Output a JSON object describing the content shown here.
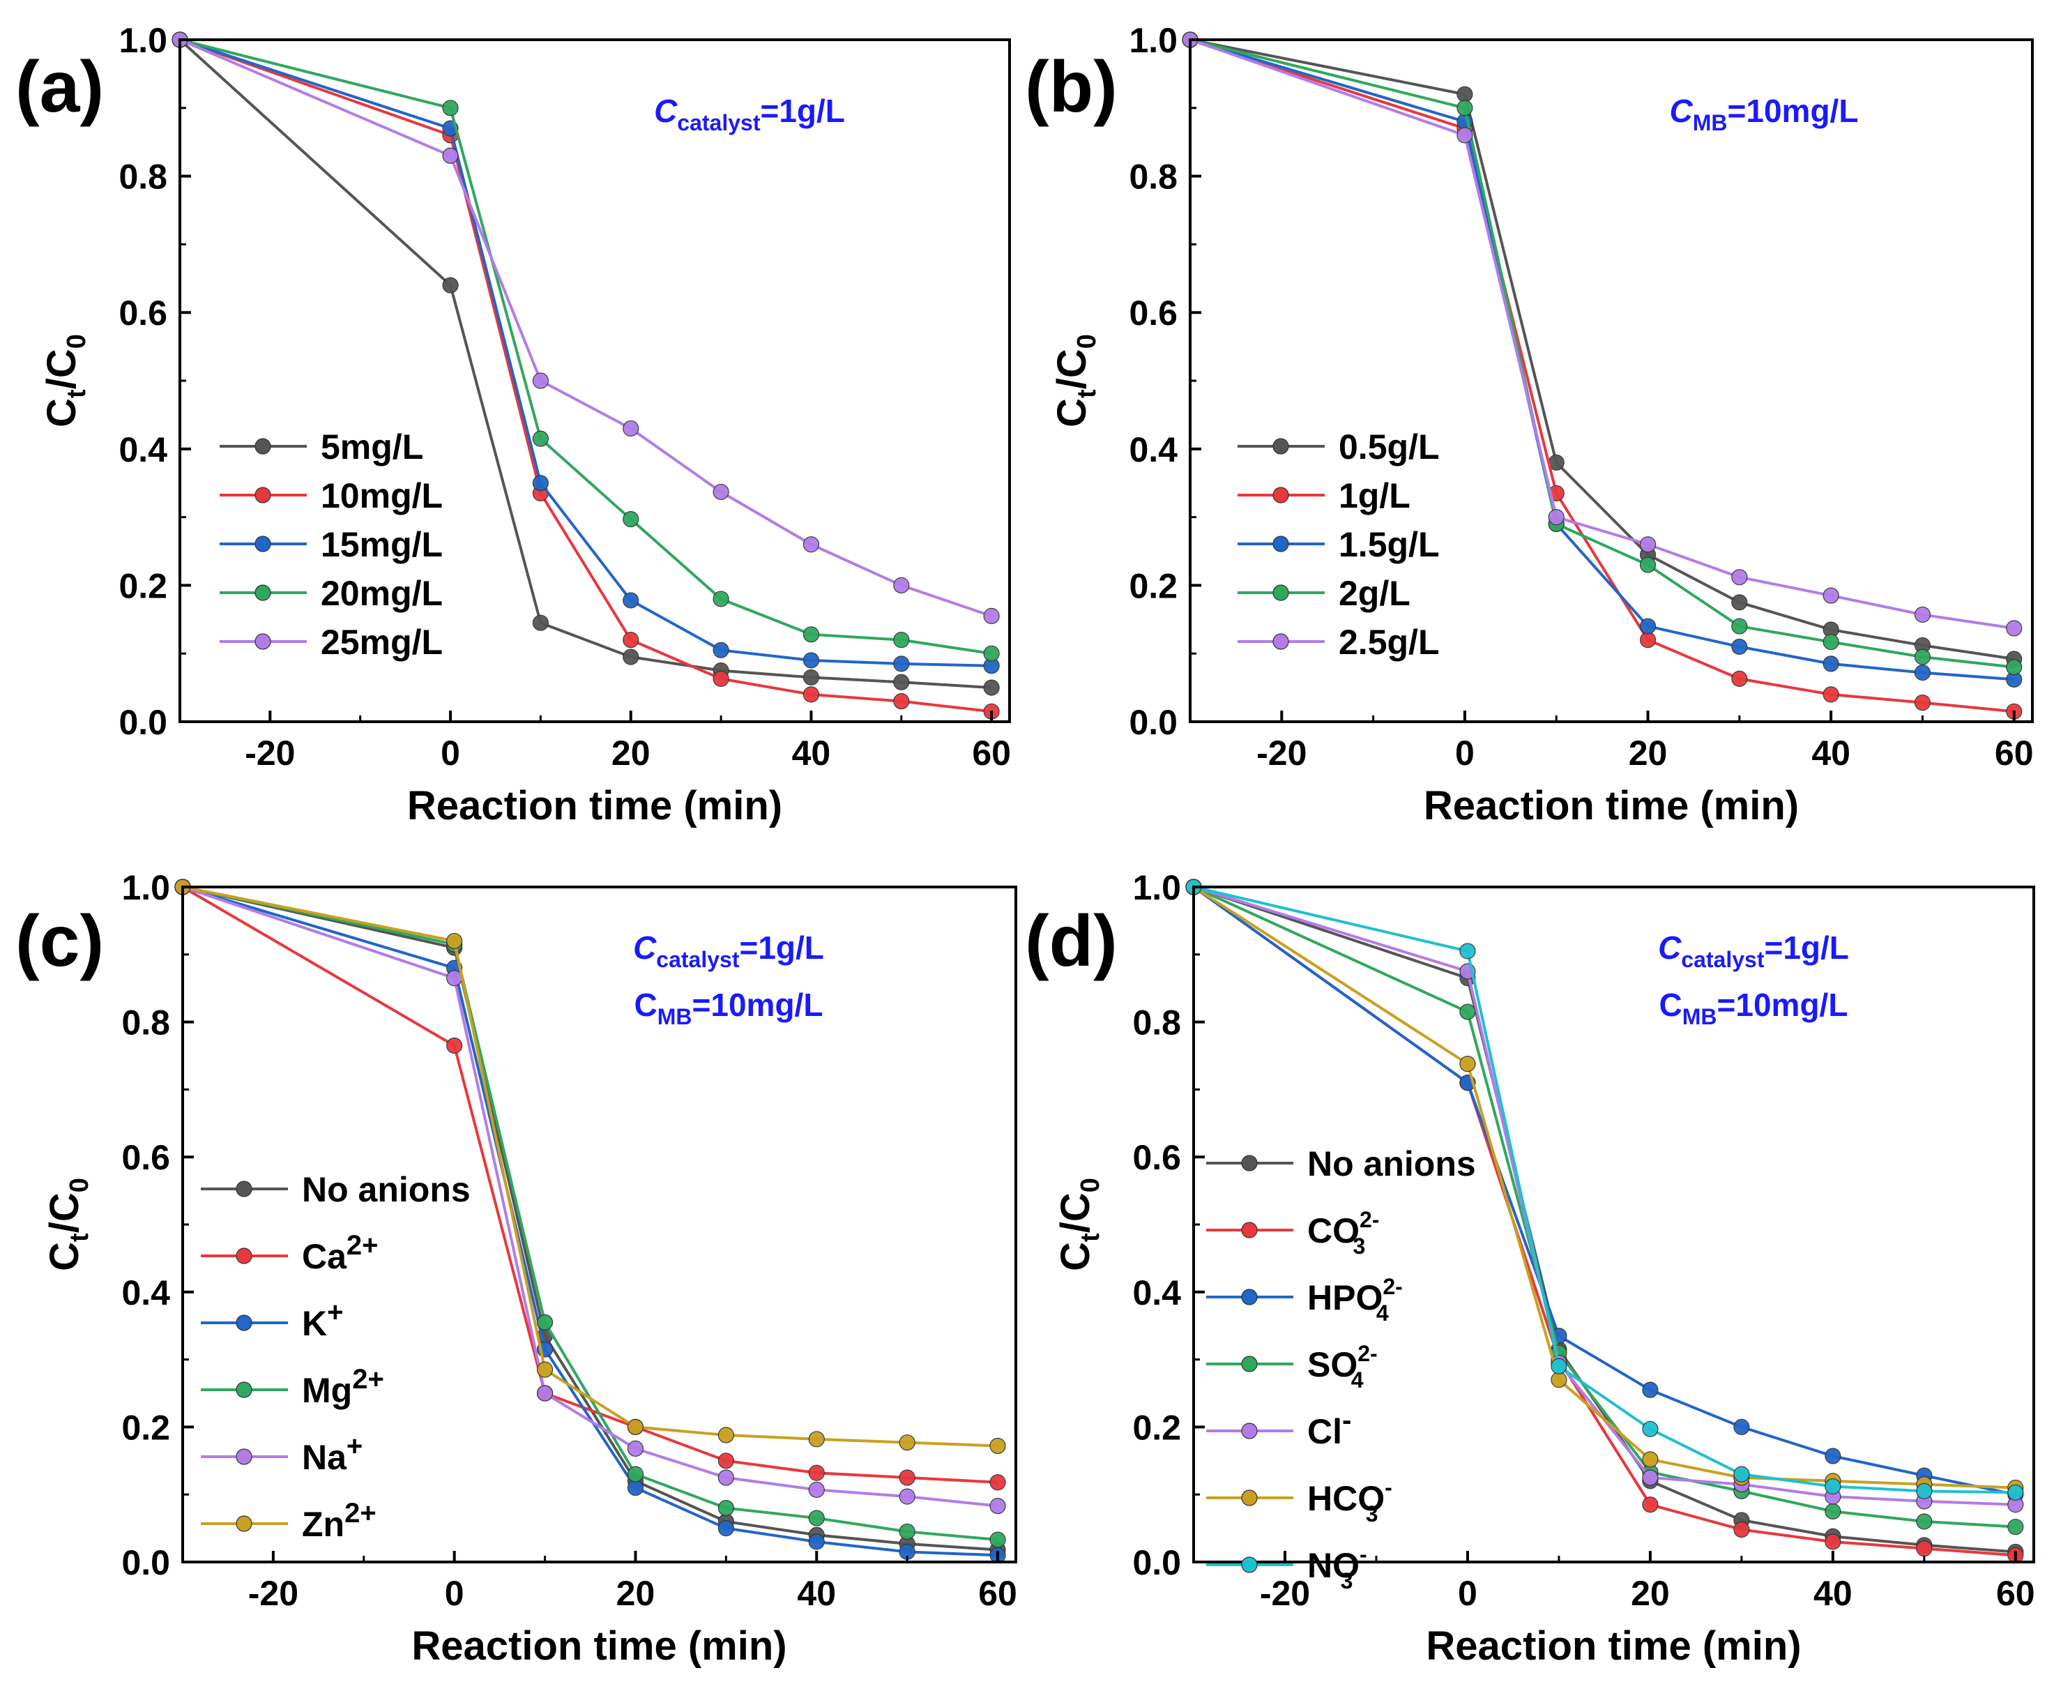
{
  "figure": {
    "panels": [
      {
        "id": "a",
        "panel_label": "(a)",
        "xlabel": "Reaction time (min)",
        "ylabel": "C",
        "ylabel_sub_t": "t",
        "ylabel_slash": "/C",
        "ylabel_sub_0": "0",
        "annotations": [
          {
            "main": "C",
            "sub": "catalyst",
            "rest": "=1g/L",
            "italic_main": true
          }
        ]
      },
      {
        "id": "b",
        "panel_label": "(b)",
        "xlabel": "Reaction time (min)",
        "ylabel": "C",
        "ylabel_sub_t": "t",
        "ylabel_slash": "/C",
        "ylabel_sub_0": "0",
        "annotations": [
          {
            "main": "C",
            "sub": "MB",
            "rest": "=10mg/L",
            "italic_main": true
          }
        ]
      },
      {
        "id": "c",
        "panel_label": "(c)",
        "xlabel": "Reaction time (min)",
        "ylabel": "C",
        "ylabel_sub_t": "t",
        "ylabel_slash": "/C",
        "ylabel_sub_0": "0",
        "annotations": [
          {
            "main": "C",
            "sub": "catalyst",
            "rest": "=1g/L",
            "italic_main": true
          },
          {
            "main": "C",
            "sub": "MB",
            "rest": "=10mg/L",
            "italic_main": false
          }
        ]
      },
      {
        "id": "d",
        "panel_label": "(d)",
        "xlabel": "Reaction time (min)",
        "ylabel": "C",
        "ylabel_sub_t": "t",
        "ylabel_slash": "/C",
        "ylabel_sub_0": "0",
        "annotations": [
          {
            "main": "C",
            "sub": "catalyst",
            "rest": "=1g/L",
            "italic_main": true
          },
          {
            "main": "C",
            "sub": "MB",
            "rest": "=10mg/L",
            "italic_main": false
          }
        ]
      }
    ]
  },
  "chart_data": [
    {
      "type": "line",
      "panel": "(a)",
      "title": "",
      "xlabel": "Reaction time (min)",
      "ylabel": "Ct/C0",
      "xlim": [
        -30,
        62
      ],
      "ylim": [
        0.0,
        1.0
      ],
      "xticks": [
        "-20",
        "0",
        "20",
        "40",
        "60"
      ],
      "yticks": [
        "0.0",
        "0.2",
        "0.4",
        "0.6",
        "0.8",
        "1.0"
      ],
      "x": [
        -30,
        0,
        10,
        20,
        30,
        40,
        50,
        60
      ],
      "series": [
        {
          "name": "5mg/L",
          "color": "#555555",
          "values": [
            1.0,
            0.64,
            0.145,
            0.095,
            0.075,
            0.065,
            0.058,
            0.05
          ]
        },
        {
          "name": "10mg/L",
          "color": "#e8383d",
          "values": [
            1.0,
            0.86,
            0.335,
            0.12,
            0.063,
            0.04,
            0.03,
            0.015
          ]
        },
        {
          "name": "15mg/L",
          "color": "#2166c8",
          "values": [
            1.0,
            0.87,
            0.35,
            0.178,
            0.105,
            0.09,
            0.085,
            0.082
          ]
        },
        {
          "name": "20mg/L",
          "color": "#2fa85e",
          "values": [
            1.0,
            0.9,
            0.415,
            0.297,
            0.18,
            0.128,
            0.12,
            0.1
          ]
        },
        {
          "name": "25mg/L",
          "color": "#b27ce8",
          "values": [
            1.0,
            0.83,
            0.5,
            0.43,
            0.337,
            0.26,
            0.2,
            0.155
          ]
        }
      ],
      "legend": "center-left"
    },
    {
      "type": "line",
      "panel": "(b)",
      "title": "",
      "xlabel": "Reaction time (min)",
      "ylabel": "Ct/C0",
      "xlim": [
        -30,
        62
      ],
      "ylim": [
        0.0,
        1.0
      ],
      "xticks": [
        "-20",
        "0",
        "20",
        "40",
        "60"
      ],
      "yticks": [
        "0.0",
        "0.2",
        "0.4",
        "0.6",
        "0.8",
        "1.0"
      ],
      "x": [
        -30,
        0,
        10,
        20,
        30,
        40,
        50,
        60
      ],
      "series": [
        {
          "name": "0.5g/L",
          "color": "#555555",
          "values": [
            1.0,
            0.92,
            0.38,
            0.245,
            0.175,
            0.135,
            0.112,
            0.092
          ]
        },
        {
          "name": "1g/L",
          "color": "#e8383d",
          "values": [
            1.0,
            0.87,
            0.335,
            0.12,
            0.063,
            0.04,
            0.028,
            0.015
          ]
        },
        {
          "name": "1.5g/L",
          "color": "#2166c8",
          "values": [
            1.0,
            0.88,
            0.29,
            0.14,
            0.11,
            0.085,
            0.072,
            0.062
          ]
        },
        {
          "name": "2g/L",
          "color": "#2fa85e",
          "values": [
            1.0,
            0.9,
            0.29,
            0.23,
            0.14,
            0.117,
            0.095,
            0.08
          ]
        },
        {
          "name": "2.5g/L",
          "color": "#b27ce8",
          "values": [
            1.0,
            0.86,
            0.3,
            0.26,
            0.212,
            0.185,
            0.157,
            0.137
          ]
        }
      ],
      "legend": "center-left"
    },
    {
      "type": "line",
      "panel": "(c)",
      "title": "",
      "xlabel": "Reaction time (min)",
      "ylabel": "Ct/C0",
      "xlim": [
        -30,
        62
      ],
      "ylim": [
        0.0,
        1.0
      ],
      "xticks": [
        "-20",
        "0",
        "20",
        "40",
        "60"
      ],
      "yticks": [
        "0.0",
        "0.2",
        "0.4",
        "0.6",
        "0.8",
        "1.0"
      ],
      "x": [
        -30,
        0,
        10,
        20,
        30,
        40,
        50,
        60
      ],
      "series": [
        {
          "name": "No anions",
          "color": "#555555",
          "values": [
            1.0,
            0.91,
            0.335,
            0.12,
            0.06,
            0.04,
            0.027,
            0.018
          ]
        },
        {
          "name": "Ca2+",
          "color": "#e8383d",
          "values": [
            1.0,
            0.765,
            0.25,
            0.2,
            0.15,
            0.132,
            0.125,
            0.118
          ]
        },
        {
          "name": "K+",
          "color": "#2166c8",
          "values": [
            1.0,
            0.88,
            0.315,
            0.11,
            0.05,
            0.03,
            0.015,
            0.01
          ]
        },
        {
          "name": "Mg2+",
          "color": "#2fa85e",
          "values": [
            1.0,
            0.915,
            0.355,
            0.13,
            0.08,
            0.065,
            0.045,
            0.033
          ]
        },
        {
          "name": "Na+",
          "color": "#b27ce8",
          "values": [
            1.0,
            0.865,
            0.25,
            0.168,
            0.125,
            0.107,
            0.097,
            0.083
          ]
        },
        {
          "name": "Zn2+",
          "color": "#c9a020",
          "values": [
            1.0,
            0.92,
            0.285,
            0.2,
            0.188,
            0.182,
            0.177,
            0.172
          ]
        }
      ],
      "legend": "center-left"
    },
    {
      "type": "line",
      "panel": "(d)",
      "title": "",
      "xlabel": "Reaction time (min)",
      "ylabel": "Ct/C0",
      "xlim": [
        -30,
        62
      ],
      "ylim": [
        0.0,
        1.0
      ],
      "xticks": [
        "-20",
        "0",
        "20",
        "40",
        "60"
      ],
      "yticks": [
        "0.0",
        "0.2",
        "0.4",
        "0.6",
        "0.8",
        "1.0"
      ],
      "x": [
        -30,
        0,
        10,
        20,
        30,
        40,
        50,
        60
      ],
      "series": [
        {
          "name": "No anions",
          "color": "#555555",
          "values": [
            1.0,
            0.865,
            0.315,
            0.12,
            0.062,
            0.038,
            0.025,
            0.015
          ]
        },
        {
          "name": "CO32-",
          "color": "#e8383d",
          "values": [
            1.0,
            0.71,
            0.3,
            0.085,
            0.048,
            0.03,
            0.02,
            0.01
          ]
        },
        {
          "name": "HPO42-",
          "color": "#2166c8",
          "values": [
            1.0,
            0.71,
            0.335,
            0.255,
            0.2,
            0.157,
            0.128,
            0.1
          ]
        },
        {
          "name": "SO42-",
          "color": "#2fa85e",
          "values": [
            1.0,
            0.815,
            0.31,
            0.133,
            0.105,
            0.075,
            0.06,
            0.052
          ]
        },
        {
          "name": "Cl-",
          "color": "#b27ce8",
          "values": [
            1.0,
            0.875,
            0.295,
            0.125,
            0.115,
            0.097,
            0.09,
            0.085
          ]
        },
        {
          "name": "HCO3-",
          "color": "#c9a020",
          "values": [
            1.0,
            0.738,
            0.27,
            0.152,
            0.125,
            0.12,
            0.115,
            0.11
          ]
        },
        {
          "name": "NO3-",
          "color": "#1fc0d0",
          "values": [
            1.0,
            0.905,
            0.29,
            0.197,
            0.13,
            0.112,
            0.105,
            0.103
          ]
        }
      ],
      "legend": "center-left"
    }
  ],
  "legend_labels": {
    "a": [
      {
        "base": "5mg/L",
        "sup": "",
        "sub": ""
      },
      {
        "base": "10mg/L",
        "sup": "",
        "sub": ""
      },
      {
        "base": "15mg/L",
        "sup": "",
        "sub": ""
      },
      {
        "base": "20mg/L",
        "sup": "",
        "sub": ""
      },
      {
        "base": "25mg/L",
        "sup": "",
        "sub": ""
      }
    ],
    "b": [
      {
        "base": "0.5g/L",
        "sup": "",
        "sub": ""
      },
      {
        "base": "1g/L",
        "sup": "",
        "sub": ""
      },
      {
        "base": "1.5g/L",
        "sup": "",
        "sub": ""
      },
      {
        "base": "2g/L",
        "sup": "",
        "sub": ""
      },
      {
        "base": "2.5g/L",
        "sup": "",
        "sub": ""
      }
    ],
    "c": [
      {
        "base": "No anions",
        "sup": "",
        "sub": ""
      },
      {
        "base": "Ca",
        "sup": "2+",
        "sub": ""
      },
      {
        "base": "K",
        "sup": "+",
        "sub": ""
      },
      {
        "base": "Mg",
        "sup": "2+",
        "sub": ""
      },
      {
        "base": "Na",
        "sup": "+",
        "sub": ""
      },
      {
        "base": "Zn",
        "sup": "2+",
        "sub": ""
      }
    ],
    "d": [
      {
        "base": "No anions",
        "sup": "",
        "sub": ""
      },
      {
        "base": "CO",
        "sup": "2-",
        "sub": "3"
      },
      {
        "base": "HPO",
        "sup": "2-",
        "sub": "4"
      },
      {
        "base": "SO",
        "sup": "2-",
        "sub": "4"
      },
      {
        "base": "Cl",
        "sup": "-",
        "sub": ""
      },
      {
        "base": "HCO",
        "sup": "-",
        "sub": "3"
      },
      {
        "base": "NO",
        "sup": "-",
        "sub": "3"
      }
    ]
  }
}
